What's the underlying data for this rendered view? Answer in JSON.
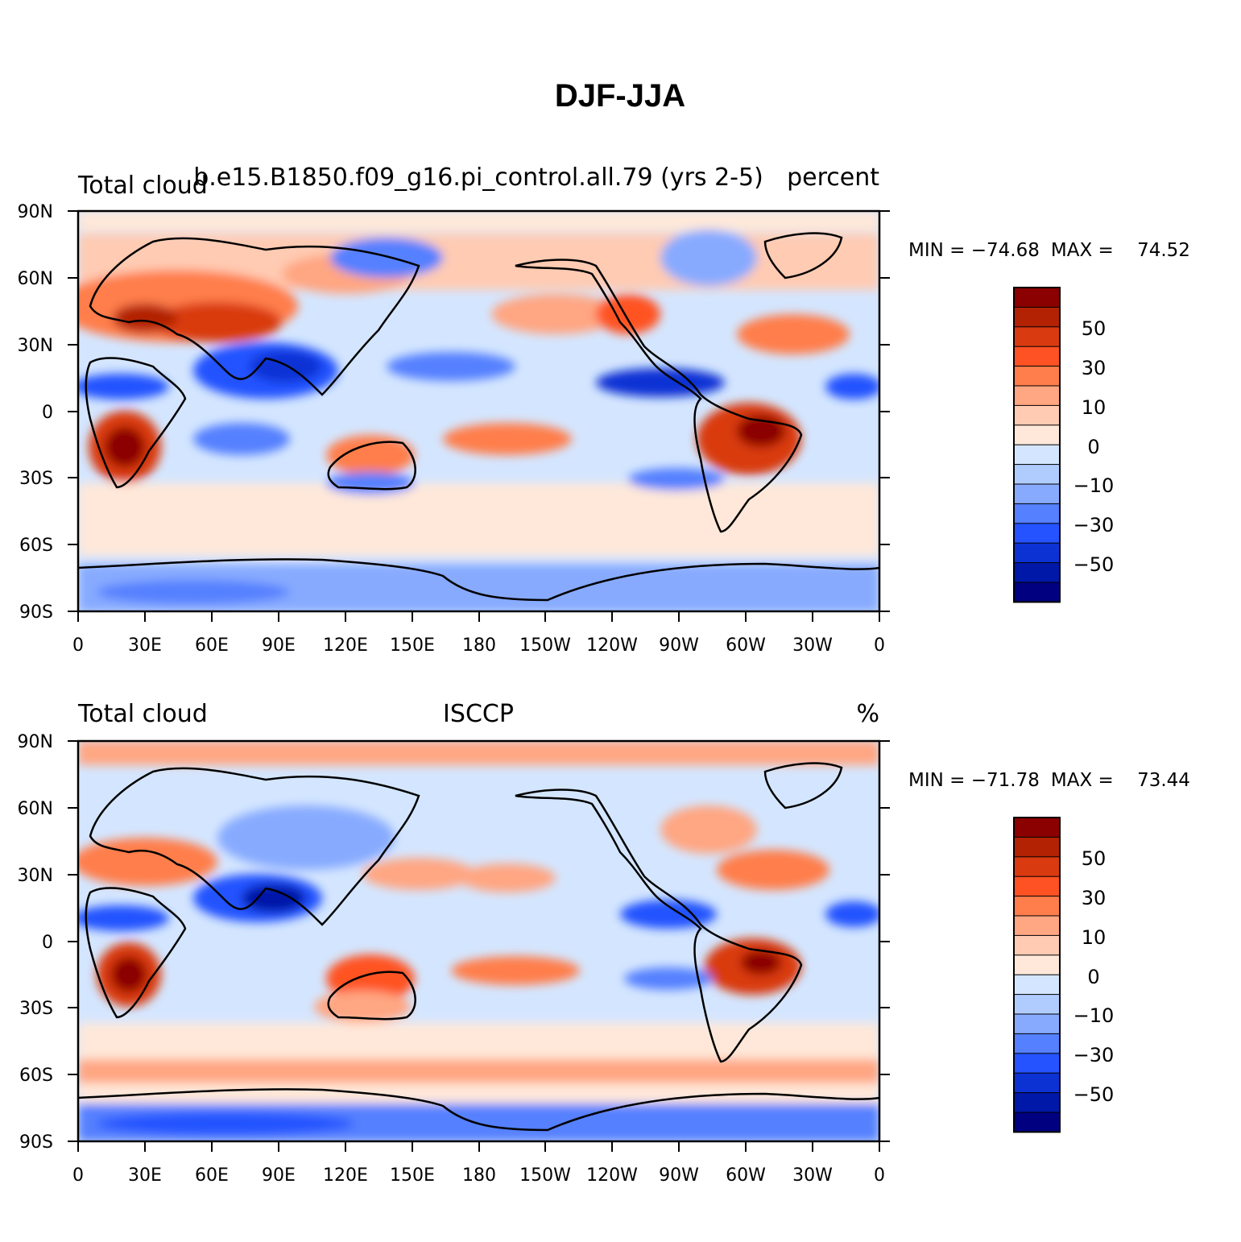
{
  "title": "DJF-JJA",
  "panels": [
    {
      "left_title": "Total cloud",
      "center_title": "b.e15.B1850.f09_g16.pi_control.all.79 (yrs 2-5)",
      "right_title": "percent",
      "min_label": "MIN = ",
      "min_value": "−74.68",
      "max_label": "MAX = ",
      "max_value": "74.52"
    },
    {
      "left_title": "Total cloud",
      "center_title": "ISCCP",
      "right_title": "%",
      "min_label": "MIN = ",
      "min_value": "−71.78",
      "max_label": "MAX = ",
      "max_value": "73.44"
    }
  ],
  "lat_labels": [
    "90N",
    "60N",
    "30N",
    "0",
    "30S",
    "60S",
    "90S"
  ],
  "lon_labels": [
    "0",
    "30E",
    "60E",
    "90E",
    "120E",
    "150E",
    "180",
    "150W",
    "120W",
    "90W",
    "60W",
    "30W",
    "0"
  ],
  "colorbar": {
    "labels": [
      "50",
      "30",
      "10",
      "0",
      "−10",
      "−30",
      "−50"
    ],
    "colors": [
      "#8b0000",
      "#b22203",
      "#d93a10",
      "#ff5224",
      "#ff7e4b",
      "#ffa682",
      "#ffcbb2",
      "#ffe8d9",
      "#d4e6ff",
      "#b0ccff",
      "#87aaff",
      "#5580ff",
      "#2453ff",
      "#0d32d4",
      "#0018a8",
      "#000080"
    ]
  },
  "chart_data": {
    "type": "heatmap",
    "variable": "Total cloud",
    "season_difference": "DJF-JJA",
    "x_range": [
      0,
      360
    ],
    "y_range": [
      -90,
      90
    ],
    "contour_levels": [
      -70,
      -60,
      -50,
      -40,
      -30,
      -20,
      -10,
      0,
      10,
      20,
      30,
      40,
      50,
      60,
      70
    ],
    "panels": [
      {
        "name": "b.e15.B1850.f09_g16.pi_control.all.79 (yrs 2-5)",
        "units": "percent",
        "min": -74.68,
        "max": 74.52
      },
      {
        "name": "ISCCP",
        "units": "%",
        "min": -71.78,
        "max": 73.44
      }
    ]
  }
}
